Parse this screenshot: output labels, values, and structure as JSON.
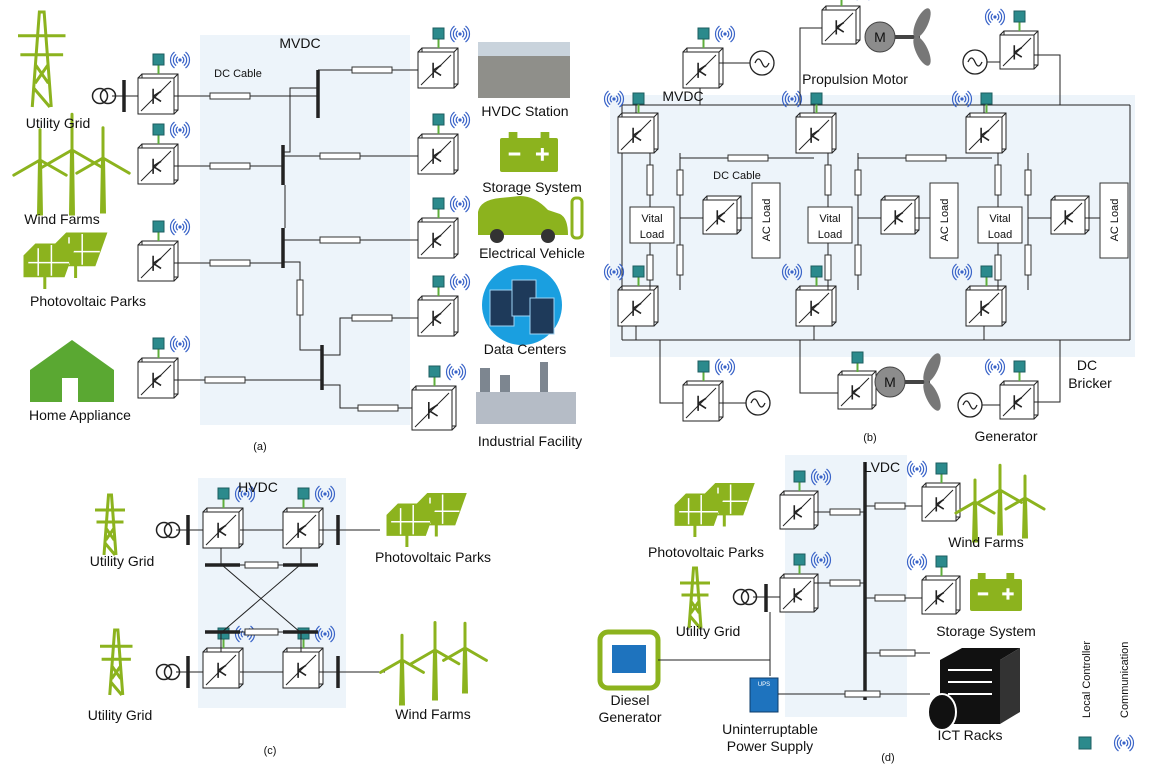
{
  "a": {
    "bus": "MVDC",
    "cable": "DC Cable",
    "sources": [
      "Utility Grid",
      "Wind Farms",
      "Photovoltaic Parks",
      "Home Appliance"
    ],
    "loads": [
      "HVDC Station",
      "Storage System",
      "Electrical Vehicle",
      "Data Centers",
      "Industrial Facility"
    ],
    "caption": "(a)"
  },
  "b": {
    "bus": "MVDC",
    "cable": "DC Cable",
    "propulsion": "Propulsion Motor",
    "motors": [
      "M",
      "M"
    ],
    "vital_loads": [
      [
        "Vital",
        "Load"
      ],
      [
        "Vital",
        "Load"
      ],
      [
        "Vital",
        "Load"
      ]
    ],
    "ac_loads": [
      "AC Load",
      "AC Load",
      "AC Load"
    ],
    "breaker": [
      "DC",
      "Bricker"
    ],
    "generator": "Generator",
    "caption": "(b)"
  },
  "c": {
    "bus": "HVDC",
    "sources": [
      "Utility Grid",
      "Utility Grid"
    ],
    "pv": "Photovoltaic Parks",
    "wind": "Wind Farms",
    "caption": "(c)"
  },
  "d": {
    "bus": "LVDC",
    "pv": "Photovoltaic Parks",
    "grid": "Utility Grid",
    "wind": "Wind Farms",
    "storage": "Storage System",
    "diesel": [
      "Diesel",
      "Generator"
    ],
    "ups_label": "UPS",
    "ups": [
      "Uninterruptable",
      "Power Supply"
    ],
    "ict": "ICT Racks",
    "caption": "(d)"
  },
  "legend": [
    "Local Controller",
    "Communication"
  ]
}
